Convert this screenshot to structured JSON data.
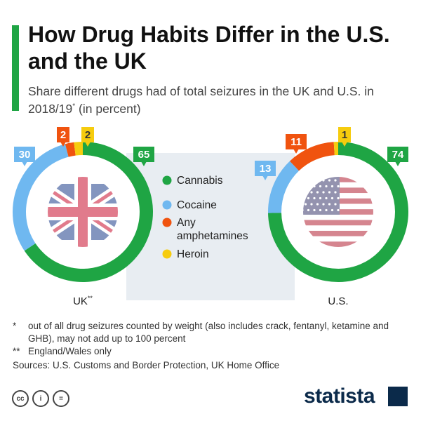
{
  "header": {
    "title": "How Drug Habits Differ in the U.S. and the UK",
    "subtitle_main": "Share different drugs had of total seizures in the UK and U.S. in 2018/19",
    "subtitle_sup": "*",
    "subtitle_end": " (in percent)"
  },
  "colors": {
    "cannabis": "#1fa544",
    "cocaine": "#6fb8f0",
    "amphetamines": "#f0530f",
    "heroin": "#f6cc0e",
    "accent": "#1fa544",
    "legend_bg": "#e8edf2",
    "brand": "#0b2a4a"
  },
  "chart_data": {
    "type": "pie",
    "style": "donut",
    "legend": [
      "Cannabis",
      "Cocaine",
      "Any amphetamines",
      "Heroin"
    ],
    "legend_placement": "center",
    "charts": [
      {
        "label": "UK",
        "label_sup": "**",
        "flag": "uk-flag",
        "slices": [
          {
            "category": "Cannabis",
            "value": 65
          },
          {
            "category": "Cocaine",
            "value": 30
          },
          {
            "category": "Any amphetamines",
            "value": 2
          },
          {
            "category": "Heroin",
            "value": 2
          }
        ]
      },
      {
        "label": "U.S.",
        "label_sup": "",
        "flag": "us-flag",
        "slices": [
          {
            "category": "Cannabis",
            "value": 74
          },
          {
            "category": "Cocaine",
            "value": 13
          },
          {
            "category": "Any amphetamines",
            "value": 11
          },
          {
            "category": "Heroin",
            "value": 1
          }
        ]
      }
    ]
  },
  "footnotes": [
    {
      "mark": "*",
      "text": "out of all drug seizures counted by weight (also includes crack, fentanyl, ketamine and GHB), may not add up to 100 percent"
    },
    {
      "mark": "**",
      "text": "England/Wales only"
    }
  ],
  "sources": "Sources: U.S. Customs and Border Protection, UK Home Office",
  "license_icons": [
    "cc-icon",
    "by-icon",
    "nd-icon"
  ],
  "license_labels": [
    "cc",
    "i",
    "="
  ],
  "brand": "statista"
}
